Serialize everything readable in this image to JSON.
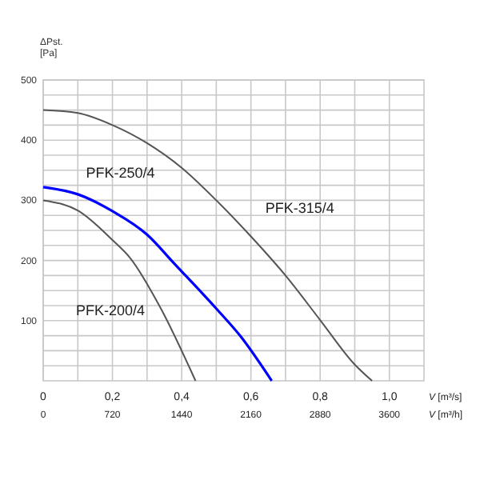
{
  "chart_data": {
    "type": "line",
    "xlabel": "V [m³/s]",
    "x2label": "V [m³/h]",
    "ylabel": "ΔPst. [Pa]",
    "xlim": [
      0,
      1.1
    ],
    "xticks": [
      {
        "value": 0,
        "label": "0"
      },
      {
        "value": 0.1,
        "label": null
      },
      {
        "value": 0.2,
        "label": "0,2"
      },
      {
        "value": 0.3,
        "label": null
      },
      {
        "value": 0.4,
        "label": "0,4"
      },
      {
        "value": 0.5,
        "label": null
      },
      {
        "value": 0.6,
        "label": "0,6"
      },
      {
        "value": 0.7,
        "label": null
      },
      {
        "value": 0.8,
        "label": "0,8"
      },
      {
        "value": 0.9,
        "label": null
      },
      {
        "value": 1.0,
        "label": "1,0"
      }
    ],
    "x2lim": [
      0,
      3960
    ],
    "x2ticks": [
      0,
      720,
      1440,
      2160,
      2880,
      3600
    ],
    "ylim": [
      0,
      500
    ],
    "yticks": [
      {
        "value": 25,
        "label": null
      },
      {
        "value": 50,
        "label": null
      },
      {
        "value": 75,
        "label": null
      },
      100,
      {
        "value": 125,
        "label": null
      },
      {
        "value": 150,
        "label": null
      },
      {
        "value": 175,
        "label": null
      },
      200,
      {
        "value": 225,
        "label": null
      },
      {
        "value": 250,
        "label": null
      },
      {
        "value": 275,
        "label": null
      },
      300,
      {
        "value": 325,
        "label": null
      },
      {
        "value": 350,
        "label": null
      },
      {
        "value": 375,
        "label": null
      },
      400,
      {
        "value": 425,
        "label": null
      },
      {
        "value": 450,
        "label": null
      },
      {
        "value": 475,
        "label": null
      },
      500
    ],
    "grid": true,
    "marker": "none",
    "line_style": "solid",
    "series": [
      {
        "name": "PFK-315/4",
        "color": "#555555",
        "x": [
          0,
          0.1,
          0.2,
          0.3,
          0.4,
          0.5,
          0.6,
          0.7,
          0.8,
          0.9,
          0.95
        ],
        "values": [
          450,
          445,
          425,
          395,
          354,
          300,
          240,
          175,
          101,
          27,
          0
        ]
      },
      {
        "name": "PFK-250/4",
        "color": "#0000ff",
        "x": [
          0,
          0.1,
          0.2,
          0.3,
          0.38,
          0.5,
          0.57,
          0.66
        ],
        "values": [
          322,
          310,
          282,
          243,
          194,
          120,
          74,
          0
        ]
      },
      {
        "name": "PFK-200/4",
        "color": "#555555",
        "x": [
          0,
          0.1,
          0.2,
          0.25,
          0.34,
          0.44
        ],
        "values": [
          300,
          283,
          234,
          205,
          120,
          0
        ]
      }
    ]
  }
}
